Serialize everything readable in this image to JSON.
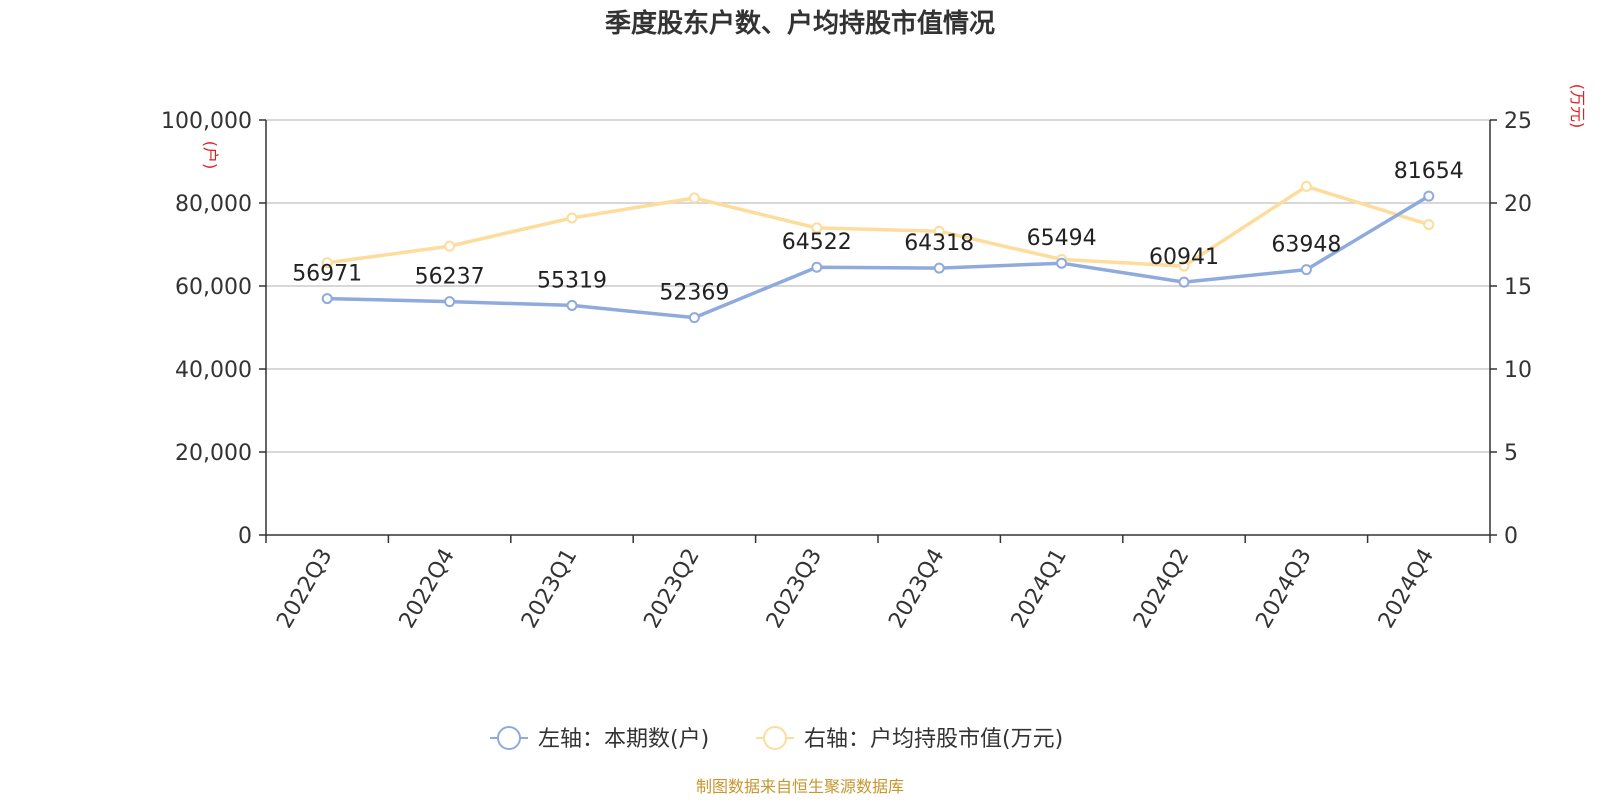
{
  "chart_data": {
    "type": "line",
    "title": "季度股东户数、户均持股市值情况",
    "categories": [
      "2022Q3",
      "2022Q4",
      "2023Q1",
      "2023Q2",
      "2023Q3",
      "2023Q4",
      "2024Q1",
      "2024Q2",
      "2024Q3",
      "2024Q4"
    ],
    "left_axis": {
      "unit": "(户)",
      "min": 0,
      "max": 100000,
      "ticks": [
        "0",
        "20,000",
        "40,000",
        "60,000",
        "80,000",
        "100,000"
      ],
      "tick_values": [
        0,
        20000,
        40000,
        60000,
        80000,
        100000
      ]
    },
    "right_axis": {
      "unit": "(万元)",
      "min": 0,
      "max": 25,
      "ticks": [
        "0",
        "5",
        "10",
        "15",
        "20",
        "25"
      ],
      "tick_values": [
        0,
        5,
        10,
        15,
        20,
        25
      ]
    },
    "series": [
      {
        "name": "左轴：本期数(户)",
        "axis": "left",
        "color": "#8faadc",
        "values": [
          56971,
          56237,
          55319,
          52369,
          64522,
          64318,
          65494,
          60941,
          63948,
          81654
        ],
        "labels": [
          "56971",
          "56237",
          "55319",
          "52369",
          "64522",
          "64318",
          "65494",
          "60941",
          "63948",
          "81654"
        ]
      },
      {
        "name": "右轴：户均持股市值(万元)",
        "axis": "right",
        "color": "#fddc9c",
        "values": [
          16.4,
          17.4,
          19.1,
          20.3,
          18.5,
          18.3,
          16.6,
          16.2,
          21.0,
          18.7
        ]
      }
    ],
    "grid": true,
    "legend_position": "bottom-center"
  },
  "footer": {
    "source": "制图数据来自恒生聚源数据库",
    "source_color": "#c8952e"
  },
  "colors": {
    "axis_unit": "#e02020",
    "grid": "#cccccc",
    "axis": "#333333"
  }
}
